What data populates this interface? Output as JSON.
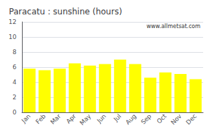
{
  "chart_data": {
    "type": "bar",
    "title": "Paracatu : sunshine (hours)",
    "categories": [
      "Jan",
      "Feb",
      "Mar",
      "Apr",
      "May",
      "Jun",
      "Jul",
      "Aug",
      "Sep",
      "Oct",
      "Nov",
      "Dec"
    ],
    "values": [
      5.8,
      5.6,
      5.8,
      6.5,
      6.2,
      6.4,
      7.0,
      6.4,
      4.6,
      5.3,
      5.1,
      4.4
    ],
    "color": "#ffff00",
    "ylim": [
      0,
      12
    ],
    "yticks": [
      0,
      2,
      4,
      6,
      8,
      10,
      12
    ],
    "grid": true,
    "annotation": "www.allmetsat.com"
  }
}
